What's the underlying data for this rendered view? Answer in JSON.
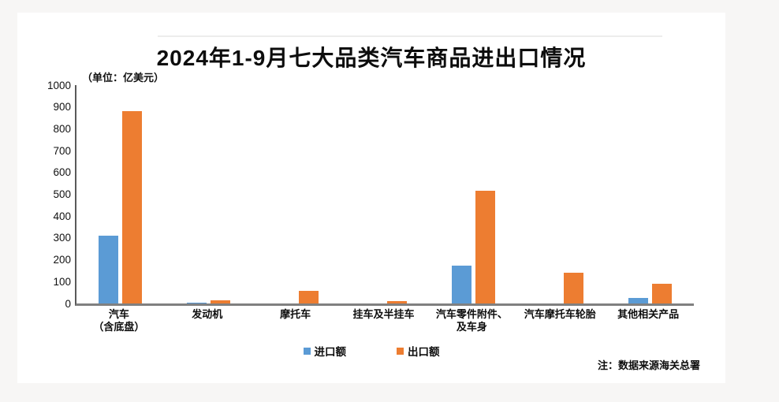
{
  "chart": {
    "title": "2024年1-9月七大品类汽车商品进出口情况",
    "unit_label": "（单位：亿美元）",
    "note": "注：数据来源海关总署"
  },
  "chart_data": {
    "type": "bar",
    "title": "2024年1-9月七大品类汽车商品进出口情况",
    "unit_label": "（单位：亿美元）",
    "note": "注：数据来源海关总署",
    "categories": [
      "汽车（含底盘）",
      "发动机",
      "摩托车",
      "挂车及半挂车",
      "汽车零件附件、及车身",
      "汽车摩托车轮胎",
      "其他相关产品"
    ],
    "category_lines": [
      [
        "汽车",
        "（含底盘）"
      ],
      [
        "发动机"
      ],
      [
        "摩托车"
      ],
      [
        "挂车及半挂车"
      ],
      [
        "汽车零件附件、",
        "及车身"
      ],
      [
        "汽车摩托车轮胎"
      ],
      [
        "其他相关产品"
      ]
    ],
    "series": [
      {
        "name": "进口额",
        "color": "#5B9BD5",
        "values": [
          310,
          5,
          0,
          0,
          172,
          0,
          27
        ]
      },
      {
        "name": "出口额",
        "color": "#ED7D31",
        "values": [
          880,
          16,
          58,
          11,
          515,
          140,
          90
        ]
      }
    ],
    "xlabel": "",
    "ylabel": "",
    "ylim": [
      0,
      1000
    ],
    "ytick_step": 100,
    "grid": false,
    "legend_position": "bottom",
    "axis_color": "#595959",
    "baseline_color": "#808080"
  }
}
